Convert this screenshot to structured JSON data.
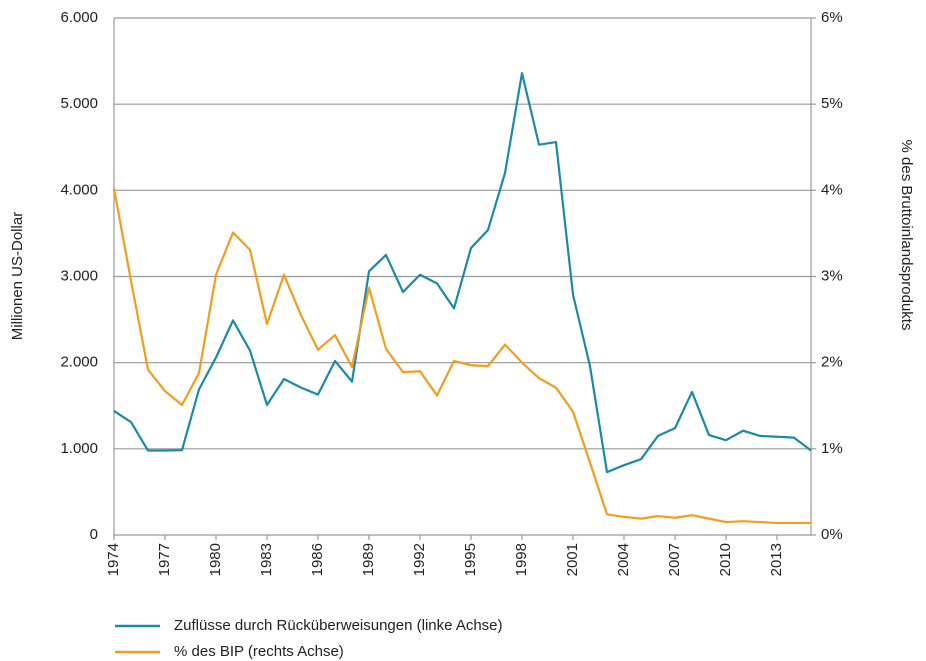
{
  "chart_data": {
    "type": "line",
    "y_label": "Millionen US-Dollar",
    "y2_label": "% des Bruttoinlandsprodukts",
    "x": [
      1974,
      1975,
      1976,
      1977,
      1978,
      1979,
      1980,
      1981,
      1982,
      1983,
      1984,
      1985,
      1986,
      1987,
      1988,
      1989,
      1990,
      1991,
      1992,
      1993,
      1994,
      1995,
      1996,
      1997,
      1998,
      1999,
      2000,
      2001,
      2002,
      2003,
      2004,
      2005,
      2006,
      2007,
      2008,
      2009,
      2010,
      2011,
      2012,
      2013,
      2014,
      2015
    ],
    "xlim": [
      1974,
      2015
    ],
    "xticks": [
      1974,
      1977,
      1980,
      1983,
      1986,
      1989,
      1992,
      1995,
      1998,
      2001,
      2004,
      2007,
      2010,
      2013
    ],
    "ylim": [
      0,
      6000
    ],
    "yticks": [
      0,
      {
        "value": 1000,
        "label": "1.000"
      },
      {
        "value": 2000,
        "label": "2.000"
      },
      {
        "value": 3000,
        "label": "3.000"
      },
      {
        "value": 4000,
        "label": "4.000"
      },
      {
        "value": 5000,
        "label": "5.000"
      },
      {
        "value": 6000,
        "label": "6.000"
      }
    ],
    "y2lim": [
      0,
      6
    ],
    "y2ticks": [
      {
        "value": 0,
        "label": "0%"
      },
      {
        "value": 1,
        "label": "1%"
      },
      {
        "value": 2,
        "label": "2%"
      },
      {
        "value": 3,
        "label": "3%"
      },
      {
        "value": 4,
        "label": "4%"
      },
      {
        "value": 5,
        "label": "5%"
      },
      {
        "value": 6,
        "label": "6%"
      }
    ],
    "grid": true,
    "series": [
      {
        "name": "Zuflüsse durch Rücküberweisungen (linke Achse)",
        "color": "#1a8aa6",
        "values": [
          1440,
          1310,
          980,
          980,
          985,
          1690,
          2060,
          2490,
          2140,
          1510,
          1810,
          1710,
          1630,
          2020,
          1780,
          3060,
          3250,
          2820,
          3020,
          2920,
          2630,
          3330,
          3540,
          4200,
          5360,
          4530,
          4560,
          2790,
          1960,
          730,
          810,
          880,
          1150,
          1240,
          1660,
          1160,
          1100,
          1210,
          1150,
          1140,
          1130,
          980
        ]
      },
      {
        "name": "% des BIP (rechts Achse)",
        "color": "#f39c1e",
        "axis": "y2",
        "values": [
          4.02,
          2.95,
          1.92,
          1.67,
          1.51,
          1.88,
          3.02,
          3.51,
          3.31,
          2.45,
          3.02,
          2.55,
          2.15,
          2.32,
          1.95,
          2.87,
          2.16,
          1.89,
          1.9,
          1.62,
          2.02,
          1.97,
          1.96,
          2.21,
          2.0,
          1.82,
          1.71,
          1.43,
          0.84,
          0.24,
          0.21,
          0.19,
          0.22,
          0.2,
          0.23,
          0.19,
          0.15,
          0.16,
          0.15,
          0.14,
          0.14,
          0.14
        ]
      }
    ]
  }
}
